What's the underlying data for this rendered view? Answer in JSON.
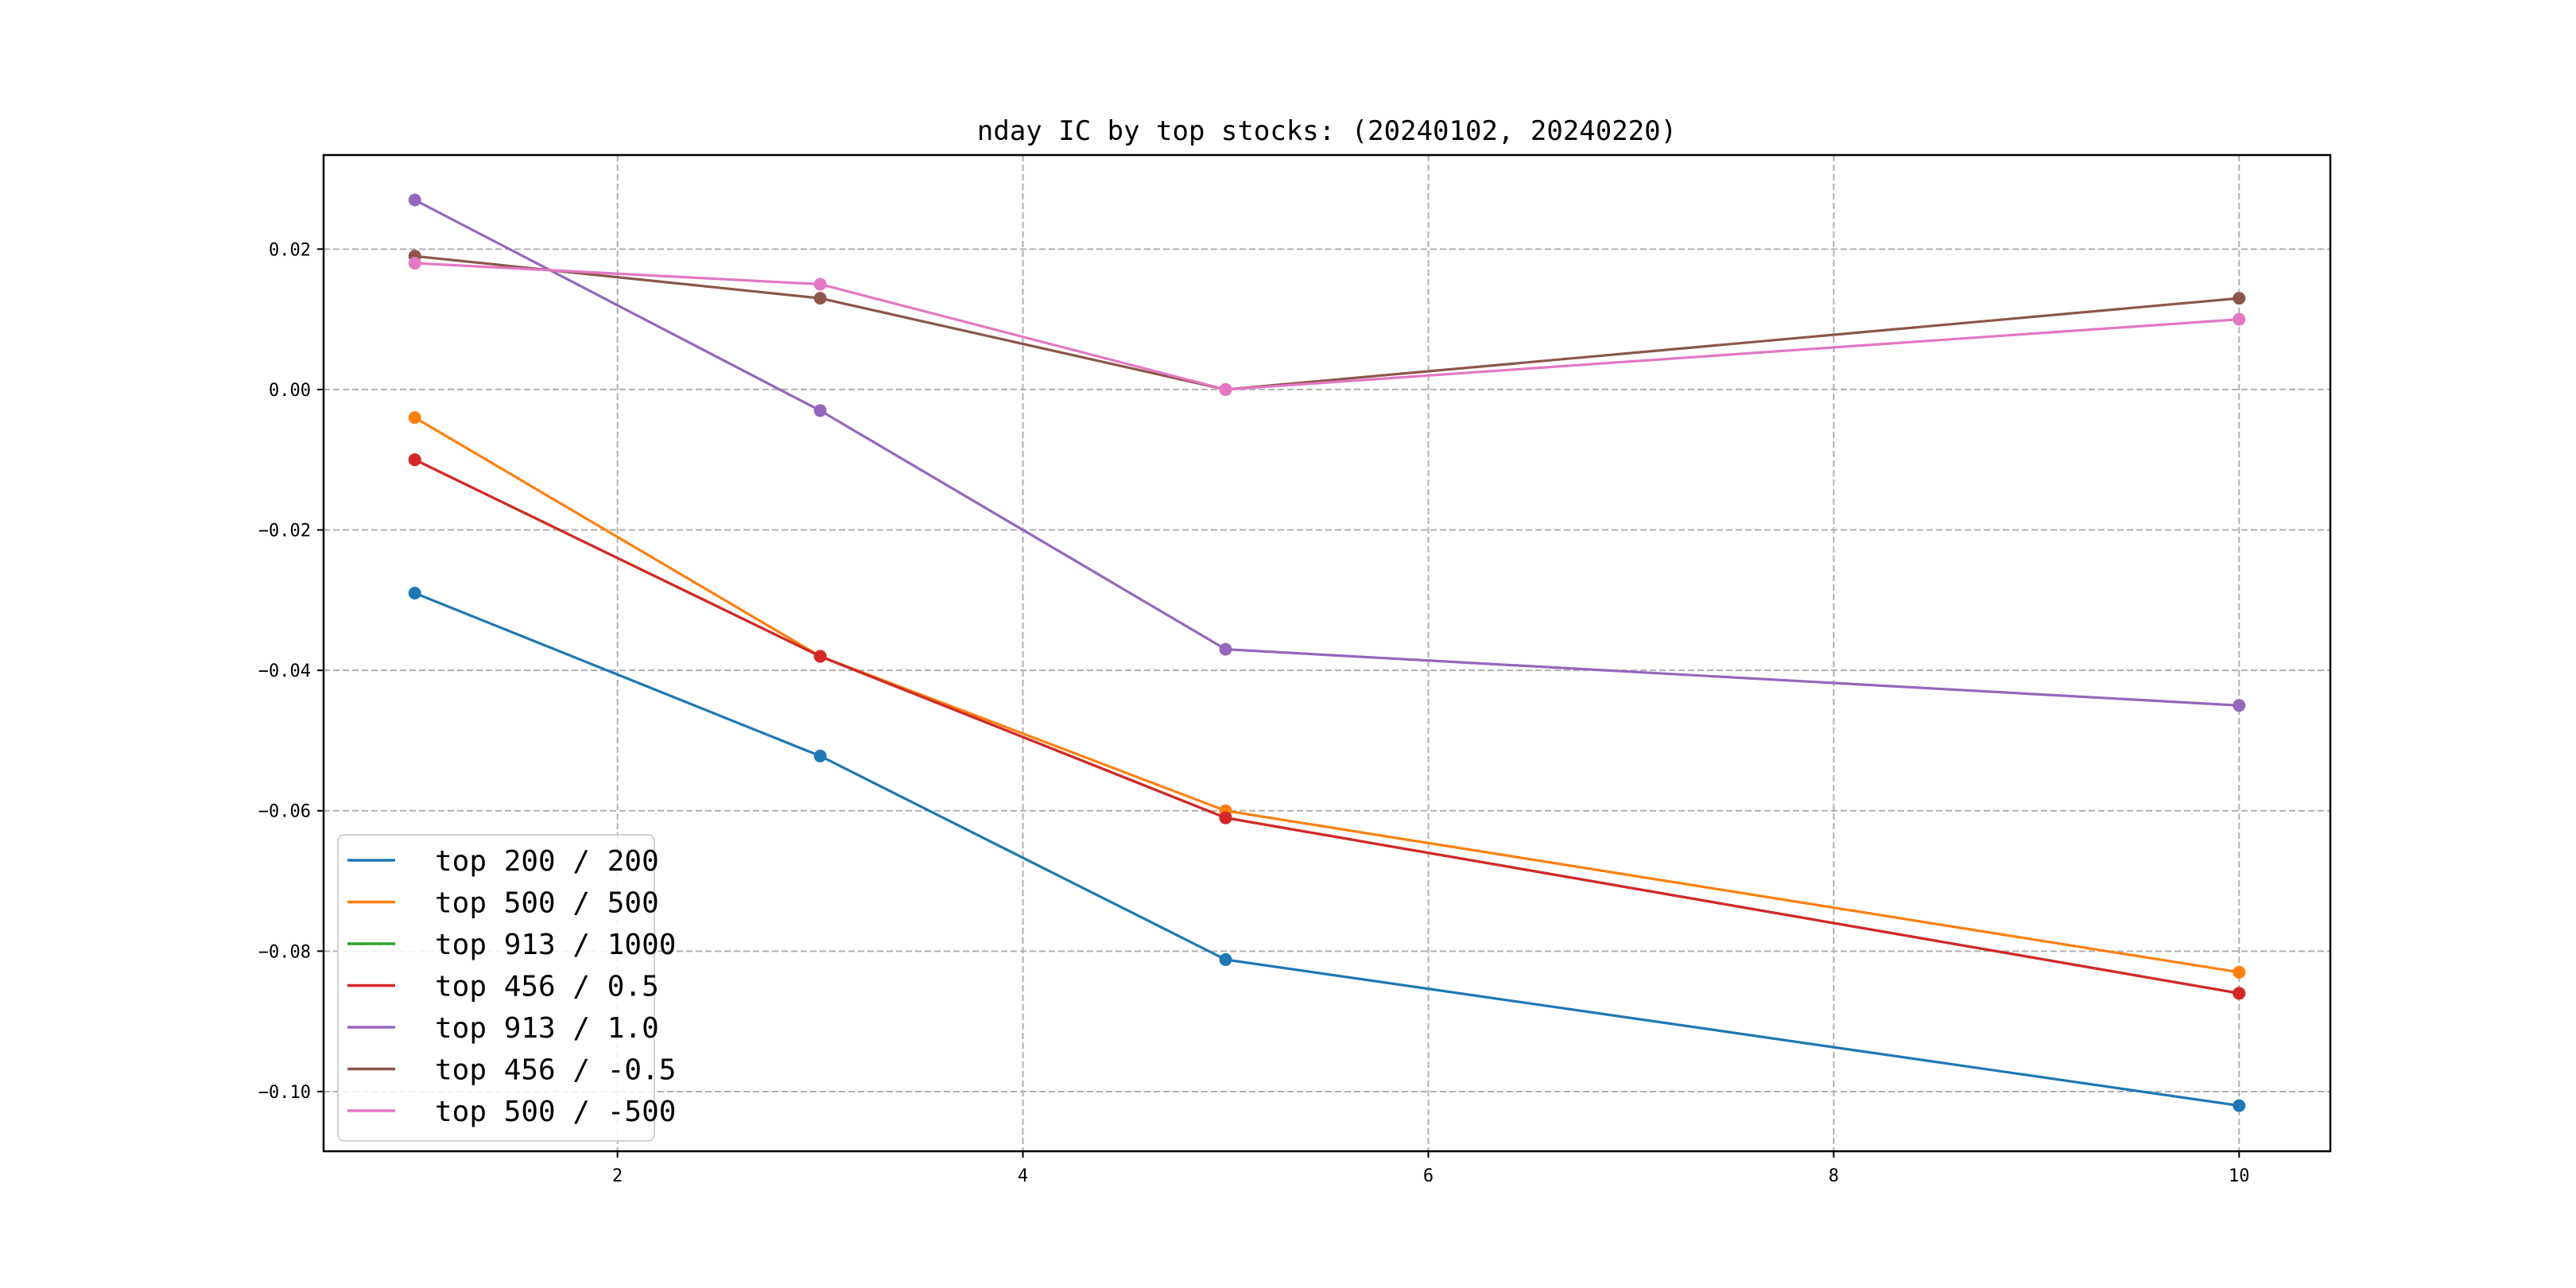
{
  "chart_data": {
    "type": "line",
    "title": "nday IC by top stocks: (20240102, 20240220)",
    "xlabel": "",
    "ylabel": "",
    "x": [
      1,
      3,
      5,
      10
    ],
    "xlim": [
      0.55,
      10.45
    ],
    "ylim": [
      -0.1085,
      0.0334
    ],
    "xticks": [
      2,
      4,
      6,
      8,
      10
    ],
    "xtick_labels": [
      "2",
      "4",
      "6",
      "8",
      "10"
    ],
    "yticks": [
      0.02,
      0.0,
      -0.02,
      -0.04,
      -0.06,
      -0.08,
      -0.1
    ],
    "ytick_labels": [
      "0.02",
      "0.00",
      "−0.02",
      "−0.04",
      "−0.06",
      "−0.08",
      "−0.10"
    ],
    "grid": true,
    "legend_position": "lower-left",
    "series": [
      {
        "name": "top 200 / 200",
        "color": "#1f77b4",
        "values": [
          -0.029,
          -0.0522,
          -0.0812,
          -0.102
        ]
      },
      {
        "name": "top 500 / 500",
        "color": "#ff7f0e",
        "values": [
          -0.004,
          -0.038,
          -0.06,
          -0.083
        ]
      },
      {
        "name": "top 913 / 1000",
        "color": "#2ca02c",
        "values": [
          -0.01,
          -0.038,
          -0.061,
          -0.086
        ]
      },
      {
        "name": "top 456 / 0.5",
        "color": "#d62728",
        "values": [
          -0.01,
          -0.038,
          -0.061,
          -0.086
        ]
      },
      {
        "name": "top 913 / 1.0",
        "color": "#9467bd",
        "values": [
          0.027,
          -0.003,
          -0.037,
          -0.045
        ]
      },
      {
        "name": "top 456 / -0.5",
        "color": "#8c564b",
        "values": [
          0.019,
          0.013,
          0.0,
          0.013
        ]
      },
      {
        "name": "top 500 / -500",
        "color": "#e377c2",
        "values": [
          0.018,
          0.015,
          0.0,
          0.01
        ]
      }
    ]
  }
}
